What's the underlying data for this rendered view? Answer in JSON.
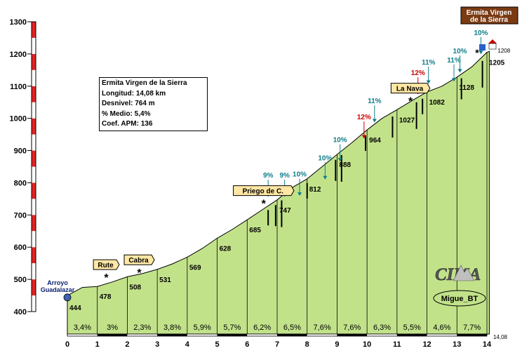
{
  "chart_data": {
    "type": "area",
    "title": "Ermita Virgen de la Sierra",
    "xlim": [
      0,
      14
    ],
    "ylim": [
      400,
      1300
    ],
    "x_ticks": [
      0,
      1,
      2,
      3,
      4,
      5,
      6,
      7,
      8,
      9,
      10,
      11,
      12,
      13,
      14
    ],
    "y_ticks": [
      400,
      500,
      600,
      700,
      800,
      900,
      1000,
      1100,
      1200,
      1300
    ],
    "grid": false,
    "end_distance_label": "14,08",
    "profile_x": [
      0,
      0.1,
      0.5,
      1,
      1.5,
      2,
      2.5,
      3,
      3.5,
      4,
      4.5,
      5,
      5.5,
      6,
      6.5,
      7,
      7.5,
      8,
      8.5,
      9,
      9.5,
      10,
      10.5,
      11,
      11.5,
      12,
      12.5,
      13,
      13.5,
      14,
      14.08
    ],
    "profile_y": [
      444,
      455,
      475,
      478,
      492,
      508,
      518,
      531,
      548,
      569,
      596,
      628,
      655,
      685,
      716,
      747,
      785,
      812,
      850,
      888,
      925,
      964,
      1000,
      1027,
      1055,
      1082,
      1100,
      1128,
      1160,
      1205,
      1208
    ],
    "km_segments": [
      {
        "x": 0.5,
        "label": "3,4%"
      },
      {
        "x": 1.5,
        "label": "3%"
      },
      {
        "x": 2.5,
        "label": "2,3%"
      },
      {
        "x": 3.5,
        "label": "3,8%"
      },
      {
        "x": 4.5,
        "label": "5,9%"
      },
      {
        "x": 5.5,
        "label": "5,7%"
      },
      {
        "x": 6.5,
        "label": "6,2%"
      },
      {
        "x": 7.5,
        "label": "6,5%"
      },
      {
        "x": 8.5,
        "label": "7,6%"
      },
      {
        "x": 9.5,
        "label": "7,6%"
      },
      {
        "x": 10.5,
        "label": "6,3%"
      },
      {
        "x": 11.5,
        "label": "5,5%"
      },
      {
        "x": 12.5,
        "label": "4,6%"
      },
      {
        "x": 13.5,
        "label": "7,7%"
      }
    ],
    "altitude_labels": [
      {
        "x": 0,
        "y": 444,
        "label": "444"
      },
      {
        "x": 1,
        "y": 478,
        "label": "478"
      },
      {
        "x": 2,
        "y": 508,
        "label": "508"
      },
      {
        "x": 3,
        "y": 531,
        "label": "531"
      },
      {
        "x": 4,
        "y": 569,
        "label": "569"
      },
      {
        "x": 5,
        "y": 628,
        "label": "628"
      },
      {
        "x": 6,
        "y": 685,
        "label": "685"
      },
      {
        "x": 7,
        "y": 747,
        "label": "747"
      },
      {
        "x": 8,
        "y": 812,
        "label": "812"
      },
      {
        "x": 9,
        "y": 888,
        "label": "888"
      },
      {
        "x": 10,
        "y": 964,
        "label": "964"
      },
      {
        "x": 11,
        "y": 1027,
        "label": "1027"
      },
      {
        "x": 12,
        "y": 1082,
        "label": "1082"
      },
      {
        "x": 13,
        "y": 1128,
        "label": "1128"
      },
      {
        "x": 14,
        "y": 1205,
        "label": "1205"
      },
      {
        "x": 14.08,
        "y": 1208,
        "label": "1208"
      }
    ],
    "gradient_annotations": [
      {
        "x": 6.7,
        "y": 754,
        "label": "9%",
        "color": "#0e7e8a"
      },
      {
        "x": 7.25,
        "y": 754,
        "label": "9%",
        "color": "#0e7e8a"
      },
      {
        "x": 7.75,
        "y": 757,
        "label": "10%",
        "color": "#0e7e8a"
      },
      {
        "x": 8.6,
        "y": 808,
        "label": "10%",
        "color": "#0e7e8a"
      },
      {
        "x": 9.1,
        "y": 864,
        "label": "10%",
        "color": "#0e7e8a"
      },
      {
        "x": 9.9,
        "y": 935,
        "label": "12%",
        "color": "#cc0000"
      },
      {
        "x": 10.25,
        "y": 985,
        "label": "11%",
        "color": "#0e7e8a"
      },
      {
        "x": 11.7,
        "y": 1072,
        "label": "12%",
        "color": "#cc0000"
      },
      {
        "x": 12.05,
        "y": 1105,
        "label": "11%",
        "color": "#0e7e8a"
      },
      {
        "x": 12.9,
        "y": 1112,
        "label": "11%",
        "color": "#0e7e8a"
      },
      {
        "x": 13.1,
        "y": 1140,
        "label": "10%",
        "color": "#0e7e8a"
      },
      {
        "x": 13.8,
        "y": 1197,
        "label": "10%",
        "color": "#0e7e8a"
      }
    ],
    "place_signs": [
      {
        "x": 1.3,
        "y": 500,
        "label": "Rute"
      },
      {
        "x": 2.4,
        "y": 515,
        "label": "Cabra"
      },
      {
        "x": 6.55,
        "y": 730,
        "label": "Priego de C."
      },
      {
        "x": 11.45,
        "y": 1048,
        "label": "La Nava"
      }
    ],
    "start_label": "Arroyo Guadalazar",
    "summit_label": "Ermita Virgen de la Sierra",
    "info_box": {
      "title": "Ermita Virgen de la Sierra",
      "longitud": "Longitud: 14,08 km",
      "desnivel": "Desnivel: 764 m",
      "medio": "% Medio: 5,4%",
      "coef": "Coef. APM: 136"
    },
    "logo_text": "CIMA",
    "author_label": "Migue_BT"
  },
  "colors": {
    "fill": "#c2e28a",
    "axis_stripe": "#e32222",
    "sign_bg": "#ffe7a4",
    "summit_bg": "#7a3a12"
  }
}
